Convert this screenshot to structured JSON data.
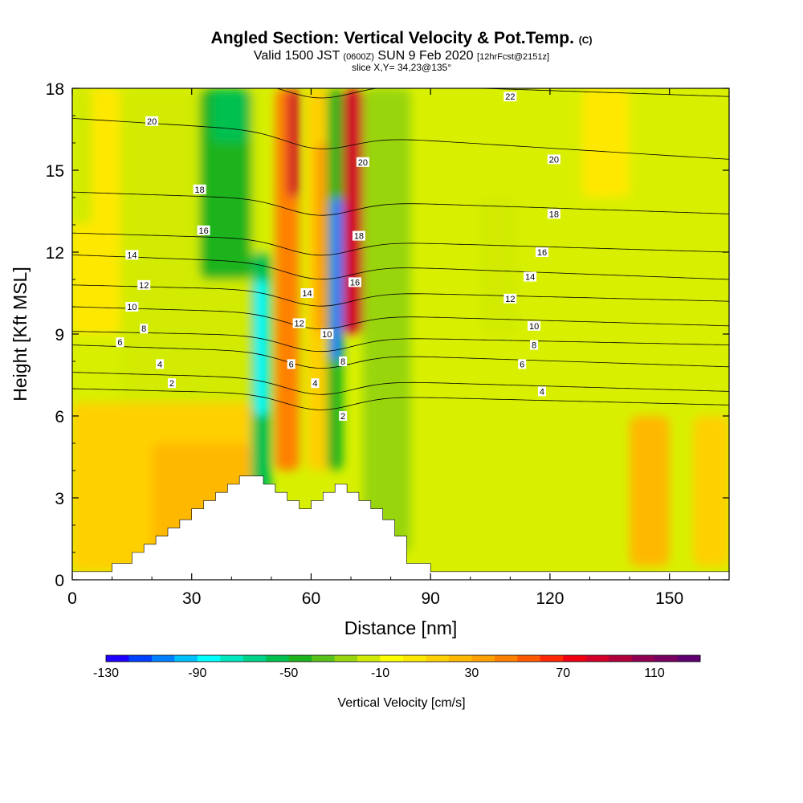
{
  "chart_data": {
    "type": "heatmap",
    "title": {
      "main": "Angled Section: Vertical Velocity & Pot.Temp.",
      "main_tag": "(C)",
      "valid_prefix": "Valid 1500 JST",
      "valid_utc": "(0600Z)",
      "valid_date": "SUN 9 Feb 2020",
      "forecast_tag": "[12hrFcst@2151z]",
      "slice": "slice X,Y= 34,23@135°"
    },
    "xlabel": "Distance [nm]",
    "ylabel": "Height [Kft MSL]",
    "xlim": [
      0,
      165
    ],
    "ylim": [
      0,
      18
    ],
    "xticks": [
      "0",
      "30",
      "60",
      "90",
      "120",
      "150"
    ],
    "yticks": [
      "0",
      "3",
      "6",
      "9",
      "12",
      "15",
      "18"
    ],
    "colorbar": {
      "label": "Vertical Velocity [cm/s]",
      "min": -130,
      "max": 130,
      "tick_labels": [
        "-130",
        "-90",
        "-50",
        "-10",
        "30",
        "70",
        "110"
      ],
      "tick_values": [
        -130,
        -90,
        -50,
        -10,
        30,
        70,
        110
      ],
      "colors": [
        "#1f00ff",
        "#0040ff",
        "#007fff",
        "#00bfff",
        "#00ffff",
        "#00e8c0",
        "#00d28a",
        "#00c050",
        "#1db31d",
        "#59c21a",
        "#99d50f",
        "#d2eb06",
        "#ffff00",
        "#ffe800",
        "#ffd000",
        "#ffb800",
        "#ff9f00",
        "#ff8000",
        "#ff5a00",
        "#ff2800",
        "#ee0010",
        "#d20028",
        "#b0003c",
        "#900050",
        "#780060",
        "#600070"
      ]
    },
    "velocity_field": {
      "background": "#d8f000",
      "bands": [
        {
          "x": [
            12,
            48
          ],
          "y": [
            6.5,
            18
          ],
          "value": -20
        },
        {
          "x": [
            32,
            45
          ],
          "y": [
            11,
            18
          ],
          "value": -45
        },
        {
          "x": [
            35,
            44
          ],
          "y": [
            16,
            18
          ],
          "value": -60
        },
        {
          "x": [
            0,
            12
          ],
          "y": [
            9,
            18
          ],
          "value": 5
        },
        {
          "x": [
            0,
            5
          ],
          "y": [
            13,
            18
          ],
          "value": -20
        },
        {
          "x": [
            0,
            45
          ],
          "y": [
            0.3,
            6.5
          ],
          "value": 15
        },
        {
          "x": [
            20,
            45
          ],
          "y": [
            1,
            5
          ],
          "value": 25
        },
        {
          "x": [
            45,
            50
          ],
          "y": [
            3,
            12
          ],
          "value": -60
        },
        {
          "x": [
            46,
            49
          ],
          "y": [
            6,
            11
          ],
          "value": -90
        },
        {
          "x": [
            51,
            57
          ],
          "y": [
            4,
            18
          ],
          "value": 40
        },
        {
          "x": [
            54,
            57
          ],
          "y": [
            14,
            18
          ],
          "value": 80
        },
        {
          "x": [
            59,
            65
          ],
          "y": [
            4,
            18
          ],
          "value": 20
        },
        {
          "x": [
            61,
            65
          ],
          "y": [
            9,
            16
          ],
          "value": 35
        },
        {
          "x": [
            64,
            68
          ],
          "y": [
            4,
            18
          ],
          "value": -50
        },
        {
          "x": [
            65,
            68
          ],
          "y": [
            8,
            14
          ],
          "value": -110
        },
        {
          "x": [
            68,
            73
          ],
          "y": [
            9,
            18
          ],
          "value": 85
        },
        {
          "x": [
            73,
            85
          ],
          "y": [
            1,
            18
          ],
          "value": -25
        },
        {
          "x": [
            102,
            112
          ],
          "y": [
            9,
            14
          ],
          "value": -20
        },
        {
          "x": [
            140,
            150
          ],
          "y": [
            0.5,
            6
          ],
          "value": 25
        },
        {
          "x": [
            156,
            165
          ],
          "y": [
            0.5,
            6
          ],
          "value": 10
        },
        {
          "x": [
            128,
            140
          ],
          "y": [
            14,
            18
          ],
          "value": 5
        }
      ],
      "mountain": {
        "x": [
          0,
          10,
          10,
          15,
          15,
          18,
          18,
          21,
          21,
          24,
          24,
          27,
          27,
          30,
          30,
          33,
          33,
          36,
          36,
          39,
          39,
          42,
          42,
          48,
          48,
          51,
          51,
          54,
          54,
          57,
          57,
          60,
          60,
          63,
          63,
          66,
          66,
          69,
          69,
          72,
          72,
          75,
          75,
          78,
          78,
          81,
          81,
          84,
          84,
          90,
          90,
          165
        ],
        "y": [
          0.3,
          0.3,
          0.6,
          0.6,
          1.0,
          1.0,
          1.3,
          1.3,
          1.6,
          1.6,
          1.9,
          1.9,
          2.2,
          2.2,
          2.6,
          2.6,
          2.9,
          2.9,
          3.2,
          3.2,
          3.5,
          3.5,
          3.8,
          3.8,
          3.5,
          3.5,
          3.2,
          3.2,
          2.9,
          2.9,
          2.6,
          2.6,
          2.9,
          2.9,
          3.2,
          3.2,
          3.5,
          3.5,
          3.2,
          3.2,
          2.9,
          2.9,
          2.6,
          2.6,
          2.2,
          2.2,
          1.6,
          1.6,
          0.6,
          0.6,
          0.3,
          0.3
        ]
      }
    },
    "theta_contours": [
      {
        "label": "2",
        "levels_left": 7.0,
        "levels_right": 6.4,
        "label_positions": [
          [
            25,
            7.2
          ],
          [
            68,
            6.0
          ]
        ]
      },
      {
        "label": "4",
        "levels_left": 7.6,
        "levels_right": 6.9,
        "label_positions": [
          [
            22,
            7.9
          ],
          [
            61,
            7.2
          ],
          [
            118,
            6.9
          ]
        ]
      },
      {
        "label": "6",
        "levels_left": 8.6,
        "levels_right": 7.8,
        "label_positions": [
          [
            12,
            8.7
          ],
          [
            55,
            7.9
          ],
          [
            113,
            7.9
          ]
        ]
      },
      {
        "label": "8",
        "levels_left": 9.1,
        "levels_right": 8.6,
        "label_positions": [
          [
            18,
            9.2
          ],
          [
            68,
            8.0
          ],
          [
            116,
            8.6
          ]
        ]
      },
      {
        "label": "10",
        "levels_left": 10.0,
        "levels_right": 9.3,
        "label_positions": [
          [
            15,
            10.0
          ],
          [
            64,
            9.0
          ],
          [
            116,
            9.3
          ]
        ]
      },
      {
        "label": "12",
        "levels_left": 10.8,
        "levels_right": 10.2,
        "label_positions": [
          [
            18,
            10.8
          ],
          [
            57,
            9.4
          ],
          [
            110,
            10.3
          ]
        ]
      },
      {
        "label": "14",
        "levels_left": 11.9,
        "levels_right": 11.0,
        "label_positions": [
          [
            15,
            11.9
          ],
          [
            59,
            10.5
          ],
          [
            115,
            11.1
          ]
        ]
      },
      {
        "label": "16",
        "levels_left": 12.7,
        "levels_right": 12.0,
        "label_positions": [
          [
            33,
            12.8
          ],
          [
            71,
            10.9
          ],
          [
            118,
            12.0
          ]
        ]
      },
      {
        "label": "18",
        "levels_left": 14.2,
        "levels_right": 13.4,
        "label_positions": [
          [
            32,
            14.3
          ],
          [
            72,
            12.6
          ],
          [
            121,
            13.4
          ]
        ]
      },
      {
        "label": "20",
        "levels_left": 16.9,
        "levels_right": 15.4,
        "label_positions": [
          [
            20,
            16.8
          ],
          [
            73,
            15.3
          ],
          [
            121,
            15.4
          ]
        ]
      },
      {
        "label": "22",
        "levels_left": 18.5,
        "levels_right": 17.7,
        "label_positions": [
          [
            110,
            17.7
          ]
        ]
      }
    ]
  }
}
